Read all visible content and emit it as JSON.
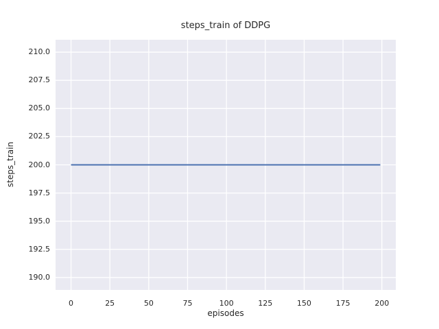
{
  "title": "steps_train of DDPG",
  "xlabel": "episodes",
  "ylabel": "steps_train",
  "colors": {
    "figure_background": "#ffffff",
    "plot_background": "#eaeaf2",
    "gridline": "#ffffff",
    "line": "#4c72b0",
    "text": "#262626"
  },
  "chart_data": {
    "type": "line",
    "title": "steps_train of DDPG",
    "xlabel": "episodes",
    "ylabel": "steps_train",
    "grid": true,
    "legend": null,
    "xlim": [
      -9.95,
      208.95
    ],
    "ylim": [
      188.9,
      211.1
    ],
    "xtick_values": [
      0,
      25,
      50,
      75,
      100,
      125,
      150,
      175,
      200
    ],
    "xtick_labels": [
      "0",
      "25",
      "50",
      "75",
      "100",
      "125",
      "150",
      "175",
      "200"
    ],
    "ytick_values": [
      190.0,
      192.5,
      195.0,
      197.5,
      200.0,
      202.5,
      205.0,
      207.5,
      210.0
    ],
    "ytick_labels": [
      "190.0",
      "192.5",
      "195.0",
      "197.5",
      "200.0",
      "202.5",
      "205.0",
      "207.5",
      "210.0"
    ],
    "series": [
      {
        "name": "steps_train",
        "color": "#4c72b0",
        "x": [
          0,
          199
        ],
        "y": [
          200,
          200
        ],
        "description": "constant value 200 for every episode from 0 to 199"
      }
    ]
  }
}
